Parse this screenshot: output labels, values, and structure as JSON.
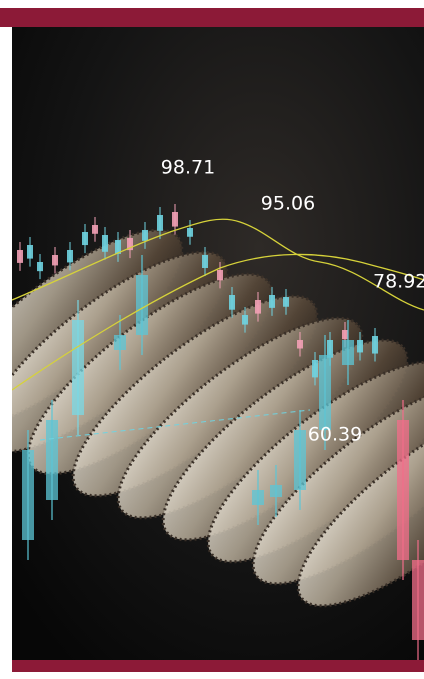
{
  "labels": [
    "98.71",
    "95.06",
    "78.92",
    "60.39"
  ]
}
